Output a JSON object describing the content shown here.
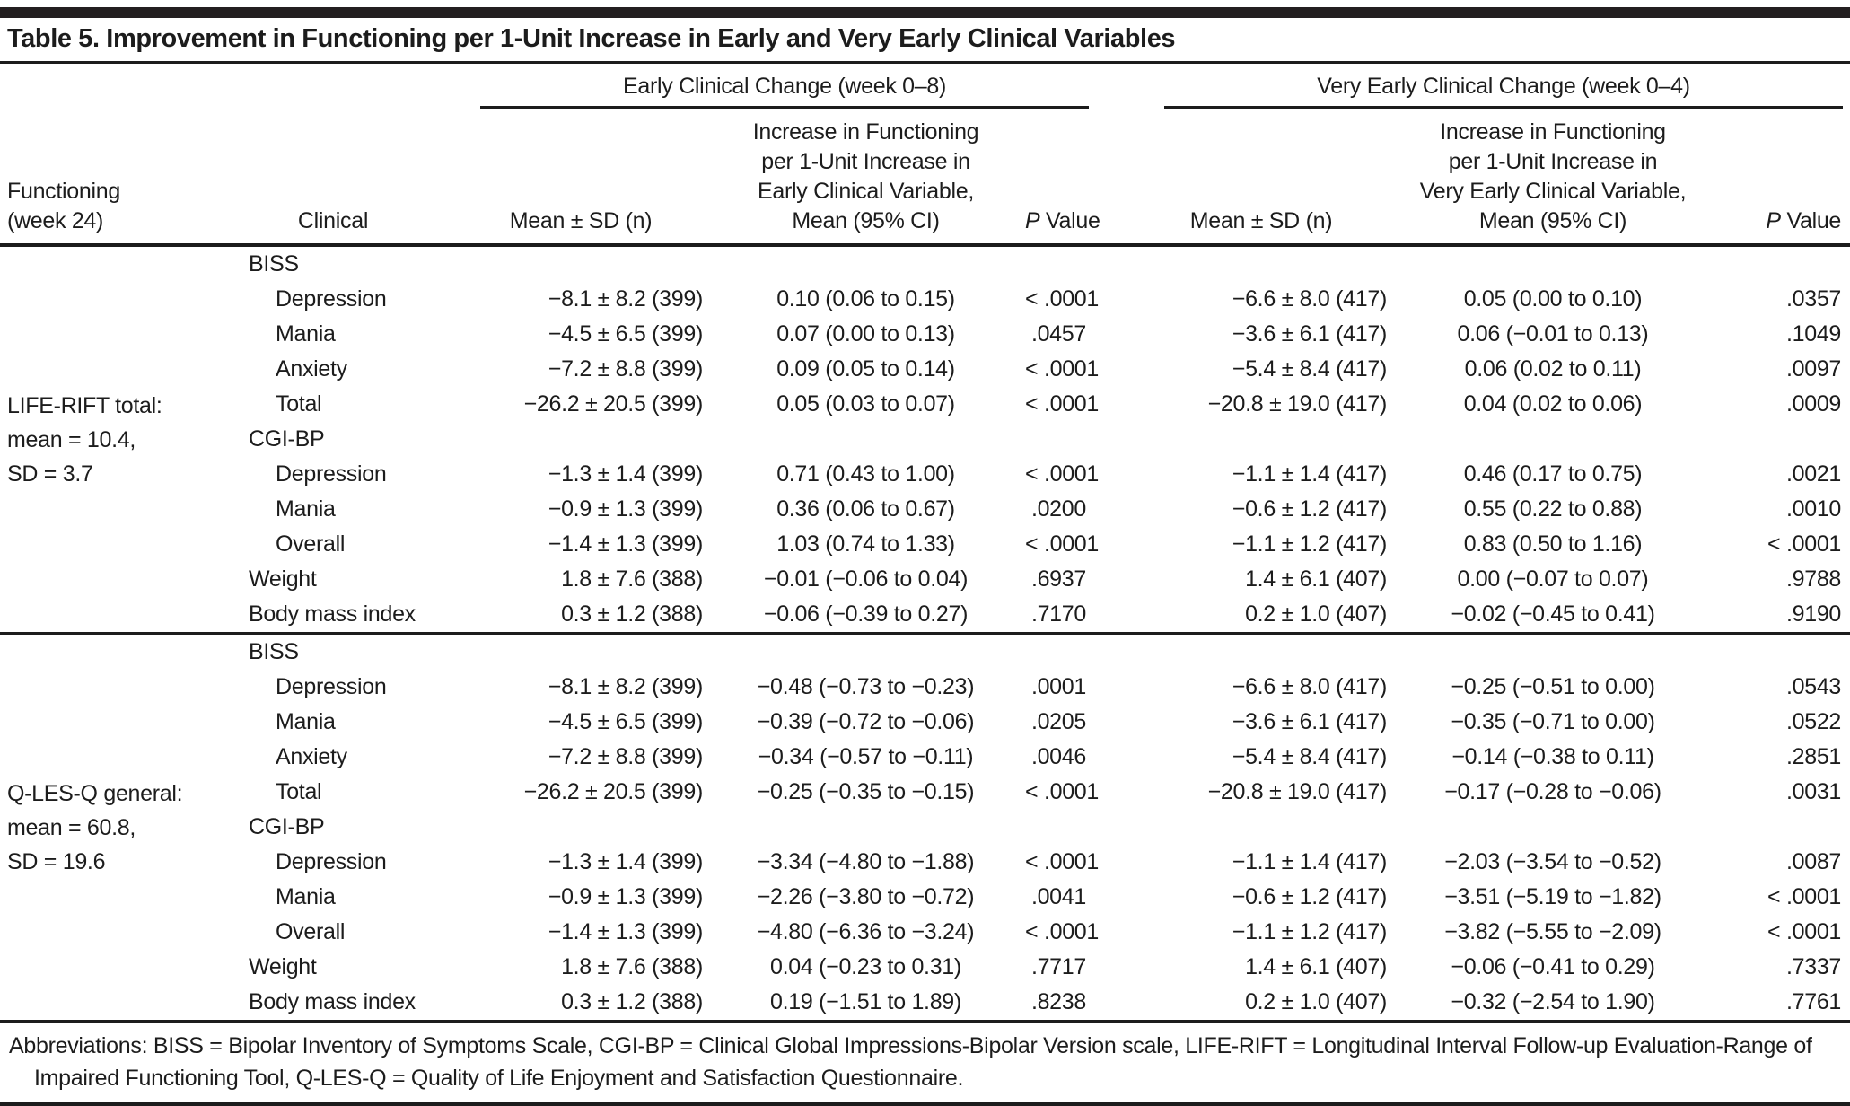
{
  "title": "Table 5. Improvement in Functioning per 1-Unit Increase in Early and Very Early Clinical Variables",
  "header": {
    "group_early": "Early Clinical Change (week 0–8)",
    "group_very_early": "Very Early Clinical Change (week 0–4)",
    "functioning_line1": "Functioning",
    "functioning_line2": "(week 24)",
    "clinical": "Clinical",
    "mean_sd": "Mean ± SD (n)",
    "early_increase_lines": [
      "Increase in Functioning",
      "per 1-Unit Increase in",
      "Early Clinical Variable,",
      "Mean (95% CI)"
    ],
    "very_early_increase_lines": [
      "Increase in Functioning",
      "per 1-Unit Increase in",
      "Very Early Clinical Variable,",
      "Mean (95% CI)"
    ],
    "p_italic": "P",
    "p_rest": " Value"
  },
  "sections": [
    {
      "label_lines": [
        "LIFE-RIFT total:",
        "mean = 10.4,",
        "SD = 3.7"
      ],
      "rows": [
        {
          "label": "BISS",
          "e_mean": "",
          "e_ci": "",
          "e_p": "",
          "v_mean": "",
          "v_ci": "",
          "v_p": ""
        },
        {
          "label": "Depression",
          "e_mean": "−8.1 ± 8.2 (399)",
          "e_ci": "0.10 (0.06 to 0.15)",
          "e_p": "< .0001",
          "v_mean": "−6.6 ± 8.0 (417)",
          "v_ci": "0.05 (0.00 to 0.10)",
          "v_p": ".0357"
        },
        {
          "label": "Mania",
          "e_mean": "−4.5 ± 6.5 (399)",
          "e_ci": "0.07 (0.00 to 0.13)",
          "e_p": ".0457",
          "v_mean": "−3.6 ± 6.1 (417)",
          "v_ci": "0.06 (−0.01 to 0.13)",
          "v_p": ".1049"
        },
        {
          "label": "Anxiety",
          "e_mean": "−7.2 ± 8.8 (399)",
          "e_ci": "0.09 (0.05 to 0.14)",
          "e_p": "< .0001",
          "v_mean": "−5.4 ± 8.4 (417)",
          "v_ci": "0.06 (0.02 to 0.11)",
          "v_p": ".0097"
        },
        {
          "label": "Total",
          "e_mean": "−26.2 ± 20.5 (399)",
          "e_ci": "0.05 (0.03 to 0.07)",
          "e_p": "< .0001",
          "v_mean": "−20.8 ± 19.0 (417)",
          "v_ci": "0.04 (0.02 to 0.06)",
          "v_p": ".0009"
        },
        {
          "label": "CGI-BP",
          "e_mean": "",
          "e_ci": "",
          "e_p": "",
          "v_mean": "",
          "v_ci": "",
          "v_p": ""
        },
        {
          "label": "Depression",
          "e_mean": "−1.3 ± 1.4 (399)",
          "e_ci": "0.71 (0.43 to 1.00)",
          "e_p": "< .0001",
          "v_mean": "−1.1 ± 1.4 (417)",
          "v_ci": "0.46 (0.17 to 0.75)",
          "v_p": ".0021"
        },
        {
          "label": "Mania",
          "e_mean": "−0.9 ± 1.3 (399)",
          "e_ci": "0.36 (0.06 to 0.67)",
          "e_p": ".0200",
          "v_mean": "−0.6 ± 1.2 (417)",
          "v_ci": "0.55 (0.22 to 0.88)",
          "v_p": ".0010"
        },
        {
          "label": "Overall",
          "e_mean": "−1.4 ± 1.3 (399)",
          "e_ci": "1.03 (0.74 to 1.33)",
          "e_p": "< .0001",
          "v_mean": "−1.1 ± 1.2 (417)",
          "v_ci": "0.83 (0.50 to 1.16)",
          "v_p": "< .0001"
        },
        {
          "label": "Weight",
          "e_mean": "1.8 ± 7.6 (388)",
          "e_ci": "−0.01 (−0.06 to 0.04)",
          "e_p": ".6937",
          "v_mean": "1.4 ± 6.1 (407)",
          "v_ci": "0.00 (−0.07 to 0.07)",
          "v_p": ".9788"
        },
        {
          "label": "Body mass index",
          "e_mean": "0.3 ± 1.2 (388)",
          "e_ci": "−0.06 (−0.39 to 0.27)",
          "e_p": ".7170",
          "v_mean": "0.2 ± 1.0 (407)",
          "v_ci": "−0.02 (−0.45 to 0.41)",
          "v_p": ".9190"
        }
      ]
    },
    {
      "label_lines": [
        "Q-LES-Q general:",
        "mean = 60.8,",
        "SD = 19.6"
      ],
      "rows": [
        {
          "label": "BISS",
          "e_mean": "",
          "e_ci": "",
          "e_p": "",
          "v_mean": "",
          "v_ci": "",
          "v_p": ""
        },
        {
          "label": "Depression",
          "e_mean": "−8.1 ± 8.2 (399)",
          "e_ci": "−0.48 (−0.73 to −0.23)",
          "e_p": ".0001",
          "v_mean": "−6.6 ± 8.0 (417)",
          "v_ci": "−0.25 (−0.51 to 0.00)",
          "v_p": ".0543"
        },
        {
          "label": "Mania",
          "e_mean": "−4.5 ± 6.5 (399)",
          "e_ci": "−0.39 (−0.72 to −0.06)",
          "e_p": ".0205",
          "v_mean": "−3.6 ± 6.1 (417)",
          "v_ci": "−0.35 (−0.71 to 0.00)",
          "v_p": ".0522"
        },
        {
          "label": "Anxiety",
          "e_mean": "−7.2 ± 8.8 (399)",
          "e_ci": "−0.34 (−0.57 to −0.11)",
          "e_p": ".0046",
          "v_mean": "−5.4 ± 8.4 (417)",
          "v_ci": "−0.14 (−0.38 to 0.11)",
          "v_p": ".2851"
        },
        {
          "label": "Total",
          "e_mean": "−26.2 ± 20.5 (399)",
          "e_ci": "−0.25 (−0.35 to −0.15)",
          "e_p": "< .0001",
          "v_mean": "−20.8 ± 19.0 (417)",
          "v_ci": "−0.17 (−0.28 to −0.06)",
          "v_p": ".0031"
        },
        {
          "label": "CGI-BP",
          "e_mean": "",
          "e_ci": "",
          "e_p": "",
          "v_mean": "",
          "v_ci": "",
          "v_p": ""
        },
        {
          "label": "Depression",
          "e_mean": "−1.3 ± 1.4 (399)",
          "e_ci": "−3.34 (−4.80 to −1.88)",
          "e_p": "< .0001",
          "v_mean": "−1.1 ± 1.4 (417)",
          "v_ci": "−2.03 (−3.54 to −0.52)",
          "v_p": ".0087"
        },
        {
          "label": "Mania",
          "e_mean": "−0.9 ± 1.3 (399)",
          "e_ci": "−2.26 (−3.80 to −0.72)",
          "e_p": ".0041",
          "v_mean": "−0.6 ± 1.2 (417)",
          "v_ci": "−3.51 (−5.19 to −1.82)",
          "v_p": "< .0001"
        },
        {
          "label": "Overall",
          "e_mean": "−1.4 ± 1.3 (399)",
          "e_ci": "−4.80 (−6.36 to −3.24)",
          "e_p": "< .0001",
          "v_mean": "−1.1 ± 1.2 (417)",
          "v_ci": "−3.82 (−5.55 to −2.09)",
          "v_p": "< .0001"
        },
        {
          "label": "Weight",
          "e_mean": "1.8 ± 7.6 (388)",
          "e_ci": "0.04 (−0.23 to 0.31)",
          "e_p": ".7717",
          "v_mean": "1.4 ± 6.1 (407)",
          "v_ci": "−0.06 (−0.41 to 0.29)",
          "v_p": ".7337"
        },
        {
          "label": "Body mass index",
          "e_mean": "0.3 ± 1.2 (388)",
          "e_ci": "0.19 (−1.51 to 1.89)",
          "e_p": ".8238",
          "v_mean": "0.2 ± 1.0 (407)",
          "v_ci": "−0.32 (−2.54 to 1.90)",
          "v_p": ".7761"
        }
      ]
    }
  ],
  "footnote": "Abbreviations: BISS = Bipolar Inventory of Symptoms Scale, CGI-BP = Clinical Global Impressions-Bipolar Version scale, LIFE-RIFT = Longitudinal Interval Follow-up Evaluation-Range of Impaired Functioning Tool, Q-LES-Q = Quality of Life Enjoyment and Satisfaction Questionnaire."
}
